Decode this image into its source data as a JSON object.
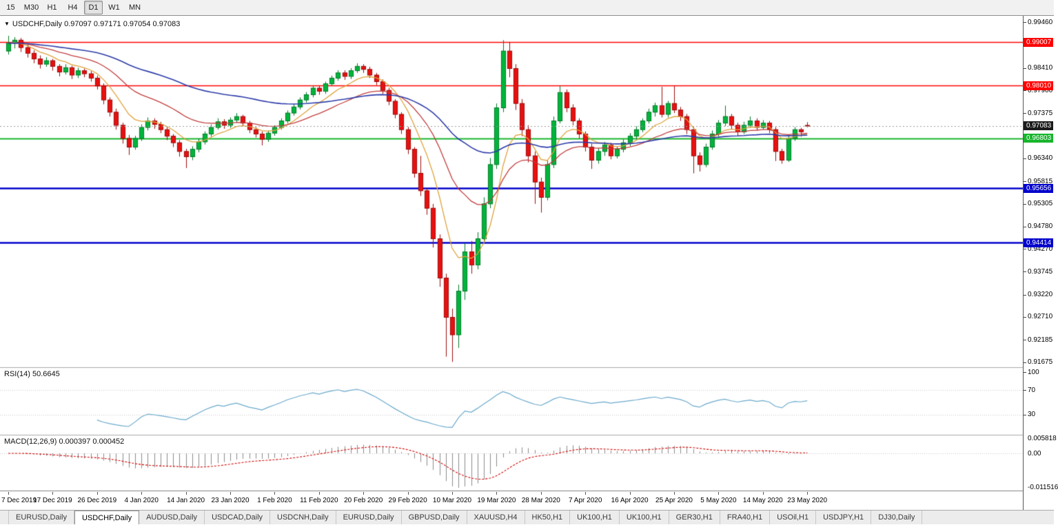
{
  "toolbar": {
    "timeframes": [
      {
        "label": "15",
        "active": false
      },
      {
        "label": "M30",
        "active": false
      },
      {
        "label": "H1",
        "active": false
      },
      {
        "label": "H4",
        "active": false
      },
      {
        "label": "D1",
        "active": true
      },
      {
        "label": "W1",
        "active": false
      },
      {
        "label": "MN",
        "active": false
      }
    ]
  },
  "chart": {
    "symbol_ohlc_label": "USDCHF,Daily 0.97097 0.97171 0.97054 0.97083"
  },
  "indicators": {
    "rsi_label": "RSI(14) 50.6645",
    "macd_label": "MACD(12,26,9) 0.000397 0.000452"
  },
  "tab_bar": {
    "tabs": [
      {
        "label": "EURUSD,Daily",
        "active": false
      },
      {
        "label": "USDCHF,Daily",
        "active": true
      },
      {
        "label": "AUDUSD,Daily",
        "active": false
      },
      {
        "label": "USDCAD,Daily",
        "active": false
      },
      {
        "label": "USDCNH,Daily",
        "active": false
      },
      {
        "label": "EURUSD,Daily",
        "active": false
      },
      {
        "label": "GBPUSD,Daily",
        "active": false
      },
      {
        "label": "XAUUSD,H4",
        "active": false
      },
      {
        "label": "HK50,H1",
        "active": false
      },
      {
        "label": "UK100,H1",
        "active": false
      },
      {
        "label": "UK100,H1",
        "active": false
      },
      {
        "label": "GER30,H1",
        "active": false
      },
      {
        "label": "FRA40,H1",
        "active": false
      },
      {
        "label": "USOil,H1",
        "active": false
      },
      {
        "label": "USDJPY,H1",
        "active": false
      },
      {
        "label": "DJ30,Daily",
        "active": false
      }
    ]
  },
  "chart_data": [
    {
      "type": "candlestick",
      "symbol": "USDCHF",
      "timeframe": "Daily",
      "ohlc_display": {
        "open": 0.97097,
        "high": 0.97171,
        "low": 0.97054,
        "close": 0.97083
      },
      "y_axis_ticks": [
        "0.99460",
        "0.98410",
        "0.97900",
        "0.97375",
        "0.96340",
        "0.95815",
        "0.95305",
        "0.94780",
        "0.94270",
        "0.93745",
        "0.93220",
        "0.92710",
        "0.92185",
        "0.91675"
      ],
      "x_axis_labels": [
        {
          "i": 0,
          "t": "7 Dec 2019"
        },
        {
          "i": 7,
          "t": "17 Dec 2019"
        },
        {
          "i": 14,
          "t": "26 Dec 2019"
        },
        {
          "i": 21,
          "t": "4 Jan 2020"
        },
        {
          "i": 28,
          "t": "14 Jan 2020"
        },
        {
          "i": 35,
          "t": "23 Jan 2020"
        },
        {
          "i": 42,
          "t": "1 Feb 2020"
        },
        {
          "i": 49,
          "t": "11 Feb 2020"
        },
        {
          "i": 56,
          "t": "20 Feb 2020"
        },
        {
          "i": 63,
          "t": "29 Feb 2020"
        },
        {
          "i": 70,
          "t": "10 Mar 2020"
        },
        {
          "i": 77,
          "t": "19 Mar 2020"
        },
        {
          "i": 84,
          "t": "28 Mar 2020"
        },
        {
          "i": 91,
          "t": "7 Apr 2020"
        },
        {
          "i": 98,
          "t": "16 Apr 2020"
        },
        {
          "i": 105,
          "t": "25 Apr 2020"
        },
        {
          "i": 112,
          "t": "5 May 2020"
        },
        {
          "i": 119,
          "t": "14 May 2020"
        },
        {
          "i": 126,
          "t": "23 May 2020"
        }
      ],
      "levels": [
        {
          "price": 0.99007,
          "label": "0.99007",
          "color": "#ff0000",
          "width": 1.4
        },
        {
          "price": 0.9801,
          "label": "0.98010",
          "color": "#ff0000",
          "width": 1.4
        },
        {
          "price": 0.96803,
          "label": "0.96803",
          "color": "#17b52c",
          "width": 2
        },
        {
          "price": 0.95656,
          "label": "0.95656",
          "color": "#0000cc",
          "width": 2.4
        },
        {
          "price": 0.94414,
          "label": "0.94414",
          "color": "#0000cc",
          "width": 2.4
        }
      ],
      "current_price": {
        "price": 0.97083,
        "label": "0.97083",
        "badge_color": "#1a1a1a",
        "line_color": "#9a9a9a"
      },
      "colors": {
        "up": "#00b43c",
        "up_wick": "#007a26",
        "down": "#e81010",
        "down_wick": "#9c0a0a",
        "background": "#ffffff"
      },
      "moving_averages": [
        {
          "period": 8,
          "color": "#dfa23b"
        },
        {
          "period": 21,
          "color": "#c23b3b"
        },
        {
          "period": 55,
          "color": "#2b3aa8"
        }
      ],
      "candles": [
        [
          0.988,
          0.9915,
          0.9872,
          0.9898
        ],
        [
          0.9898,
          0.9912,
          0.9886,
          0.9905
        ],
        [
          0.9905,
          0.991,
          0.9878,
          0.9888
        ],
        [
          0.9888,
          0.9895,
          0.9865,
          0.9875
        ],
        [
          0.9875,
          0.9882,
          0.9852,
          0.9862
        ],
        [
          0.9862,
          0.987,
          0.984,
          0.985
        ],
        [
          0.985,
          0.9866,
          0.9844,
          0.9858
        ],
        [
          0.9858,
          0.9862,
          0.9835,
          0.9845
        ],
        [
          0.9845,
          0.985,
          0.9822,
          0.9832
        ],
        [
          0.9832,
          0.985,
          0.9826,
          0.9842
        ],
        [
          0.9842,
          0.9846,
          0.9816,
          0.9825
        ],
        [
          0.9825,
          0.9842,
          0.9818,
          0.9835
        ],
        [
          0.9835,
          0.984,
          0.982,
          0.9828
        ],
        [
          0.9828,
          0.9834,
          0.981,
          0.9818
        ],
        [
          0.9818,
          0.9824,
          0.9792,
          0.98
        ],
        [
          0.98,
          0.9806,
          0.9758,
          0.9768
        ],
        [
          0.9768,
          0.9774,
          0.973,
          0.974
        ],
        [
          0.974,
          0.9748,
          0.97,
          0.971
        ],
        [
          0.971,
          0.9716,
          0.9668,
          0.968
        ],
        [
          0.968,
          0.9688,
          0.9642,
          0.966
        ],
        [
          0.966,
          0.9686,
          0.9654,
          0.968
        ],
        [
          0.968,
          0.9712,
          0.9674,
          0.9705
        ],
        [
          0.9705,
          0.9728,
          0.9698,
          0.972
        ],
        [
          0.972,
          0.9726,
          0.9702,
          0.9712
        ],
        [
          0.9712,
          0.9718,
          0.9692,
          0.97
        ],
        [
          0.97,
          0.9706,
          0.9676,
          0.9685
        ],
        [
          0.9685,
          0.969,
          0.966,
          0.967
        ],
        [
          0.967,
          0.9676,
          0.9638,
          0.965
        ],
        [
          0.965,
          0.9656,
          0.9612,
          0.9638
        ],
        [
          0.9638,
          0.9662,
          0.963,
          0.9655
        ],
        [
          0.9655,
          0.968,
          0.9648,
          0.9672
        ],
        [
          0.9672,
          0.9696,
          0.9666,
          0.969
        ],
        [
          0.969,
          0.9712,
          0.9684,
          0.9705
        ],
        [
          0.9705,
          0.9726,
          0.97,
          0.9718
        ],
        [
          0.9718,
          0.9724,
          0.9702,
          0.971
        ],
        [
          0.971,
          0.9728,
          0.9704,
          0.9722
        ],
        [
          0.9722,
          0.9738,
          0.9716,
          0.973
        ],
        [
          0.973,
          0.9734,
          0.9708,
          0.9715
        ],
        [
          0.9715,
          0.972,
          0.9692,
          0.97
        ],
        [
          0.97,
          0.9706,
          0.9682,
          0.969
        ],
        [
          0.969,
          0.9696,
          0.9664,
          0.9678
        ],
        [
          0.9678,
          0.9698,
          0.9672,
          0.9692
        ],
        [
          0.9692,
          0.971,
          0.9686,
          0.9705
        ],
        [
          0.9705,
          0.9726,
          0.97,
          0.972
        ],
        [
          0.972,
          0.9744,
          0.9714,
          0.9738
        ],
        [
          0.9738,
          0.9758,
          0.9732,
          0.9752
        ],
        [
          0.9752,
          0.9774,
          0.9746,
          0.9768
        ],
        [
          0.9768,
          0.9786,
          0.9762,
          0.978
        ],
        [
          0.978,
          0.9801,
          0.9774,
          0.9795
        ],
        [
          0.9795,
          0.98,
          0.978,
          0.9788
        ],
        [
          0.9788,
          0.981,
          0.9782,
          0.9805
        ],
        [
          0.9805,
          0.9824,
          0.98,
          0.9818
        ],
        [
          0.9818,
          0.9836,
          0.9812,
          0.983
        ],
        [
          0.983,
          0.9836,
          0.9814,
          0.9822
        ],
        [
          0.9822,
          0.9841,
          0.9816,
          0.9835
        ],
        [
          0.9835,
          0.9852,
          0.983,
          0.9845
        ],
        [
          0.9845,
          0.985,
          0.983,
          0.9838
        ],
        [
          0.9838,
          0.9844,
          0.9818,
          0.9825
        ],
        [
          0.9825,
          0.983,
          0.9802,
          0.981
        ],
        [
          0.981,
          0.9815,
          0.9782,
          0.979
        ],
        [
          0.979,
          0.9796,
          0.9756,
          0.9765
        ],
        [
          0.9765,
          0.977,
          0.9726,
          0.9735
        ],
        [
          0.9735,
          0.974,
          0.969,
          0.97
        ],
        [
          0.97,
          0.9706,
          0.9644,
          0.9655
        ],
        [
          0.9655,
          0.966,
          0.959,
          0.96
        ],
        [
          0.96,
          0.964,
          0.9548,
          0.956
        ],
        [
          0.956,
          0.9566,
          0.9505,
          0.952
        ],
        [
          0.952,
          0.953,
          0.943,
          0.945
        ],
        [
          0.945,
          0.946,
          0.934,
          0.936
        ],
        [
          0.936,
          0.937,
          0.918,
          0.927
        ],
        [
          0.927,
          0.929,
          0.9168,
          0.923
        ],
        [
          0.923,
          0.9345,
          0.92,
          0.933
        ],
        [
          0.933,
          0.944,
          0.931,
          0.942
        ],
        [
          0.942,
          0.9445,
          0.937,
          0.939
        ],
        [
          0.939,
          0.9465,
          0.938,
          0.945
        ],
        [
          0.945,
          0.9545,
          0.944,
          0.953
        ],
        [
          0.953,
          0.9635,
          0.952,
          0.962
        ],
        [
          0.962,
          0.976,
          0.961,
          0.975
        ],
        [
          0.975,
          0.9905,
          0.974,
          0.988
        ],
        [
          0.988,
          0.9901,
          0.982,
          0.984
        ],
        [
          0.984,
          0.985,
          0.9745,
          0.976
        ],
        [
          0.976,
          0.977,
          0.9685,
          0.97
        ],
        [
          0.97,
          0.971,
          0.9625,
          0.964
        ],
        [
          0.964,
          0.965,
          0.953,
          0.958
        ],
        [
          0.958,
          0.959,
          0.951,
          0.9545
        ],
        [
          0.9545,
          0.963,
          0.9538,
          0.962
        ],
        [
          0.962,
          0.973,
          0.9612,
          0.972
        ],
        [
          0.972,
          0.98,
          0.9714,
          0.9785
        ],
        [
          0.9785,
          0.9792,
          0.974,
          0.975
        ],
        [
          0.975,
          0.9758,
          0.971,
          0.972
        ],
        [
          0.972,
          0.9726,
          0.968,
          0.969
        ],
        [
          0.969,
          0.9696,
          0.965,
          0.966
        ],
        [
          0.966,
          0.9668,
          0.961,
          0.963
        ],
        [
          0.963,
          0.9658,
          0.9622,
          0.965
        ],
        [
          0.965,
          0.9672,
          0.964,
          0.9665
        ],
        [
          0.9665,
          0.967,
          0.9632,
          0.964
        ],
        [
          0.964,
          0.9662,
          0.9634,
          0.9655
        ],
        [
          0.9655,
          0.9678,
          0.9648,
          0.967
        ],
        [
          0.967,
          0.9692,
          0.9662,
          0.9685
        ],
        [
          0.9685,
          0.9708,
          0.9678,
          0.97
        ],
        [
          0.97,
          0.9726,
          0.9694,
          0.972
        ],
        [
          0.972,
          0.9748,
          0.9714,
          0.974
        ],
        [
          0.974,
          0.9762,
          0.973,
          0.9755
        ],
        [
          0.9755,
          0.9798,
          0.9728,
          0.9735
        ],
        [
          0.9735,
          0.9766,
          0.9728,
          0.976
        ],
        [
          0.976,
          0.98,
          0.9738,
          0.9745
        ],
        [
          0.9745,
          0.9752,
          0.972,
          0.973
        ],
        [
          0.973,
          0.9736,
          0.969,
          0.97
        ],
        [
          0.97,
          0.9706,
          0.96,
          0.964
        ],
        [
          0.964,
          0.9648,
          0.9604,
          0.962
        ],
        [
          0.962,
          0.9668,
          0.9614,
          0.966
        ],
        [
          0.966,
          0.9698,
          0.9654,
          0.969
        ],
        [
          0.969,
          0.9722,
          0.9684,
          0.9715
        ],
        [
          0.9715,
          0.9755,
          0.9708,
          0.973
        ],
        [
          0.973,
          0.9736,
          0.97,
          0.971
        ],
        [
          0.971,
          0.9716,
          0.9686,
          0.9695
        ],
        [
          0.9695,
          0.9718,
          0.969,
          0.971
        ],
        [
          0.971,
          0.973,
          0.9704,
          0.972
        ],
        [
          0.972,
          0.9726,
          0.9698,
          0.9705
        ],
        [
          0.9705,
          0.9722,
          0.97,
          0.9715
        ],
        [
          0.9715,
          0.972,
          0.9692,
          0.97
        ],
        [
          0.97,
          0.9706,
          0.9628,
          0.965
        ],
        [
          0.965,
          0.9656,
          0.9622,
          0.963
        ],
        [
          0.963,
          0.9688,
          0.9626,
          0.968
        ],
        [
          0.968,
          0.9706,
          0.9674,
          0.97
        ],
        [
          0.97,
          0.9704,
          0.9684,
          0.9695
        ],
        [
          0.97097,
          0.97171,
          0.97054,
          0.97083
        ]
      ]
    },
    {
      "type": "line",
      "name": "RSI",
      "params": [
        14
      ],
      "current_value": 50.6645,
      "axis_labels": [
        "100",
        "70",
        "30"
      ],
      "levels": [
        70,
        30
      ],
      "color": "#69a8cc",
      "level_color": "#c8c8c8"
    },
    {
      "type": "bar",
      "name": "MACD",
      "params": [
        12,
        26,
        9
      ],
      "current_values": [
        0.000397,
        0.000452
      ],
      "axis_labels": {
        "max": "0.005818",
        "zero": "0.00",
        "min": "-0.011516"
      },
      "histogram_color": "#8a8a8a",
      "signal_color": "#d40000"
    }
  ]
}
